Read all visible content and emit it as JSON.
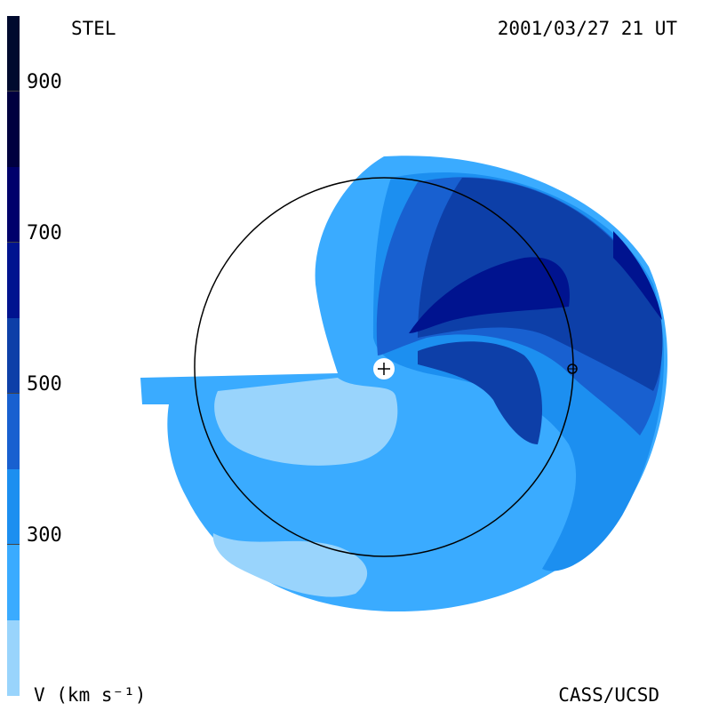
{
  "header": {
    "instrument": "STEL",
    "datetime": "2001/03/27 21 UT"
  },
  "footer": {
    "units_label": "V (km s⁻¹)",
    "credit": "CASS/UCSD"
  },
  "colorbar": {
    "ticks": [
      "900",
      "700",
      "500",
      "300"
    ],
    "colors": [
      "#000a2e",
      "#00003f",
      "#00006b",
      "#00138f",
      "#0d3fa8",
      "#1860d0",
      "#1c8ff0",
      "#3aabff",
      "#99d4fc"
    ]
  }
}
